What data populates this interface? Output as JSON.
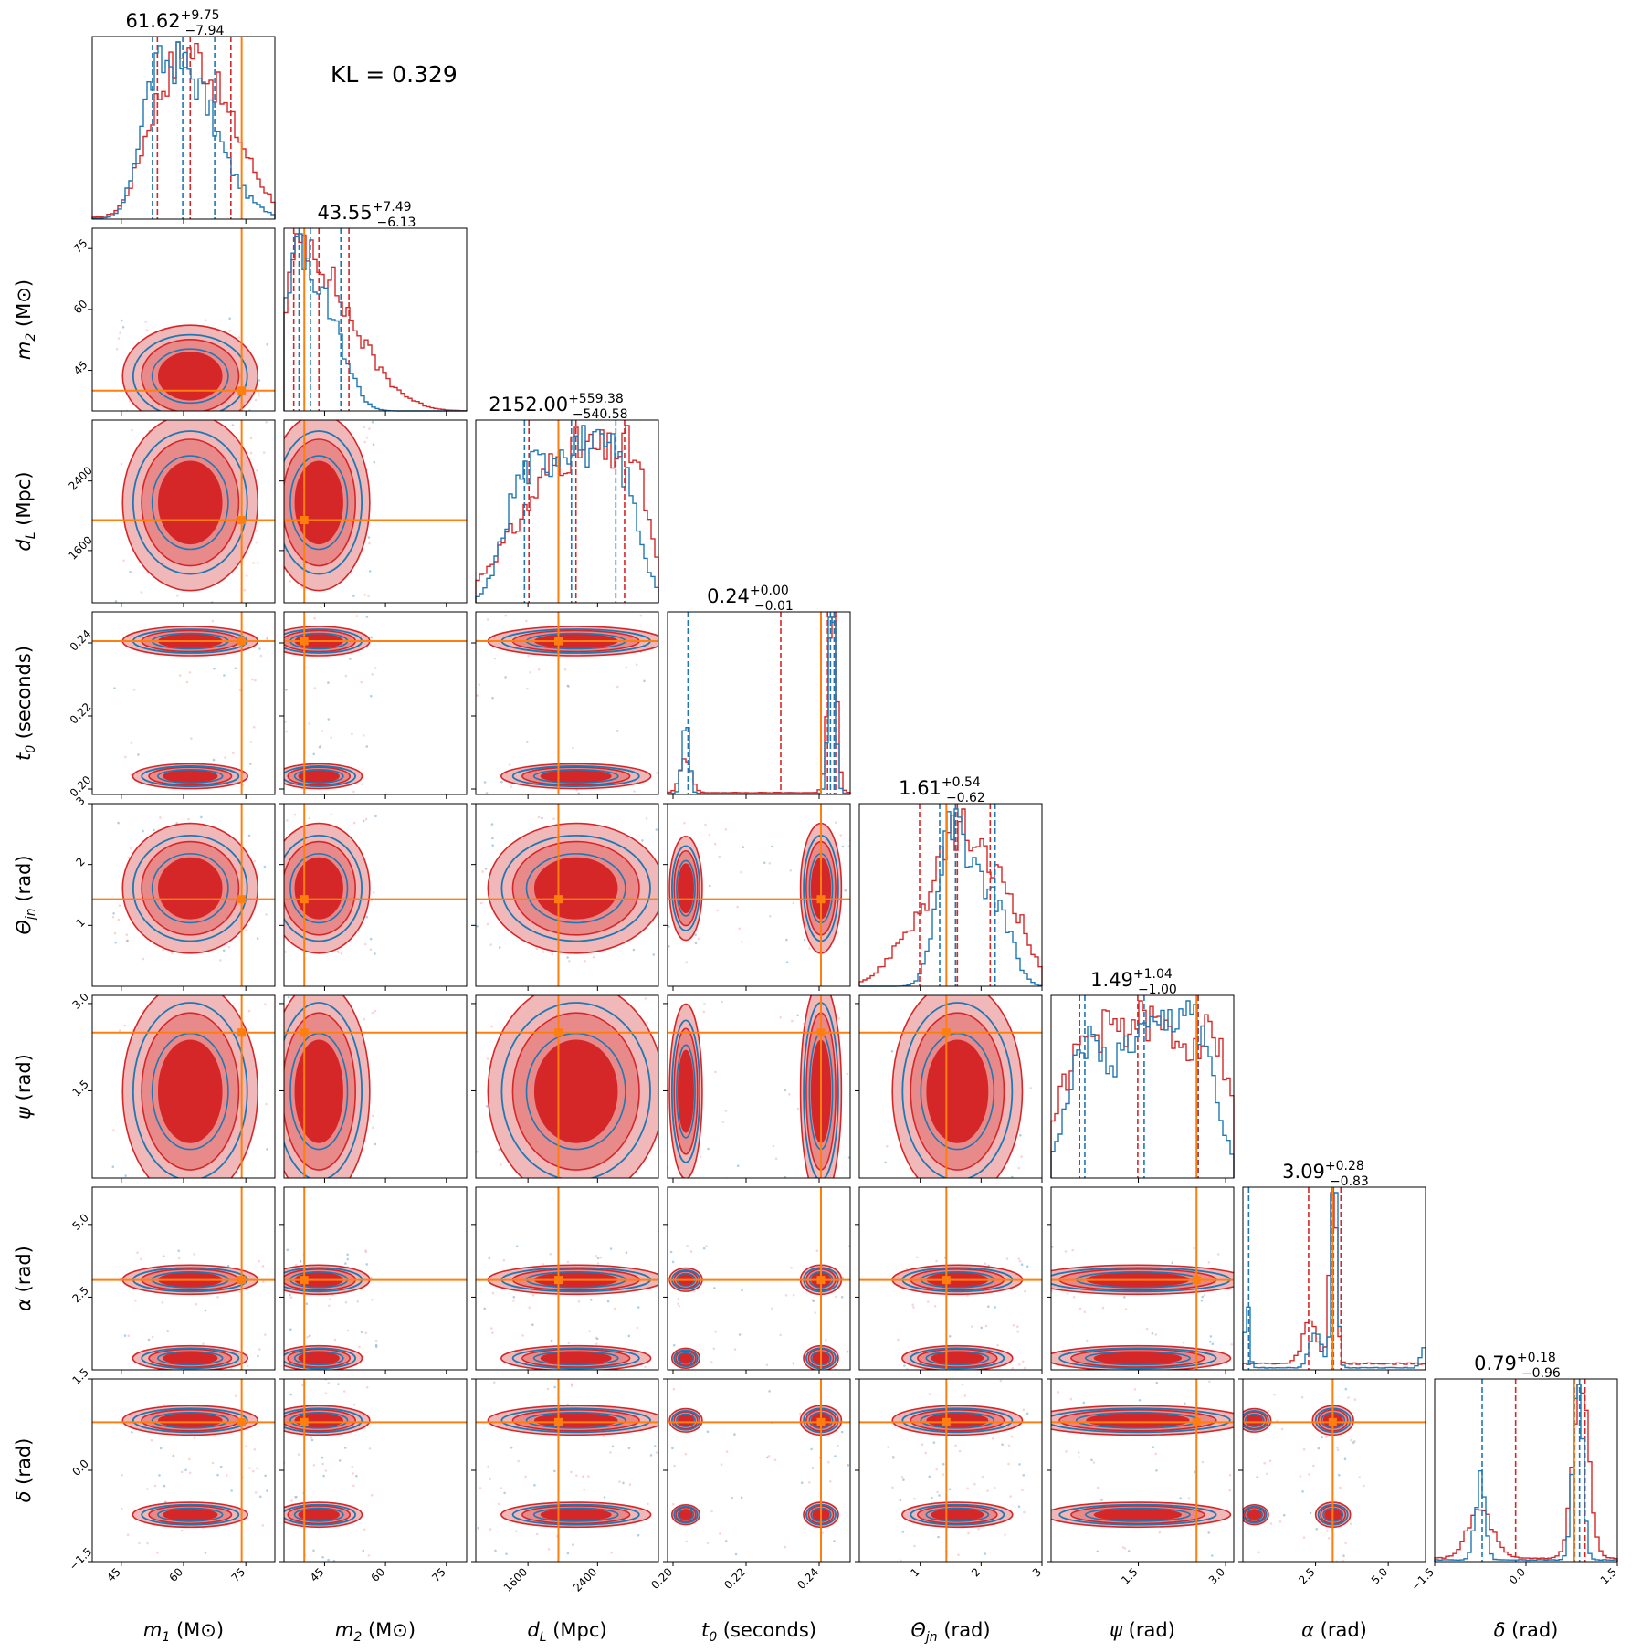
{
  "annotation": "KL = 0.329",
  "colors": {
    "red": "#d62728",
    "red_light": "#e8898a",
    "red_fill": "#f0b8b8",
    "blue": "#1f77b4",
    "orange": "#ff7f0e",
    "green": "#2ca02c"
  },
  "chart_data": {
    "type": "corner",
    "parameters": [
      {
        "id": "m1",
        "label_main": "m",
        "label_sub": "1",
        "label_unit": "(M⊙)",
        "range": [
          38,
          82
        ],
        "ticks": [
          45,
          60,
          75
        ],
        "tick_labels": [
          "45",
          "60",
          "75"
        ],
        "truth": 74,
        "title_median": "61.62",
        "title_plus": "+9.75",
        "title_minus": "−7.94",
        "red_hist": {
          "centers": [
            52,
            57,
            62,
            67,
            73
          ],
          "widths": [
            4,
            5,
            5,
            6,
            6
          ],
          "weights": [
            0.55,
            0.85,
            0.9,
            0.75,
            0.5
          ],
          "quantiles": [
            53.7,
            61.6,
            71.4
          ],
          "floor": 0.02
        },
        "blue_hist": {
          "centers": [
            51,
            55,
            60,
            64,
            70
          ],
          "widths": [
            3,
            4,
            5,
            5,
            6
          ],
          "weights": [
            0.7,
            0.95,
            0.85,
            0.7,
            0.35
          ],
          "quantiles": [
            52.5,
            59.8,
            67.5
          ],
          "floor": 0.01
        }
      },
      {
        "id": "m2",
        "label_main": "m",
        "label_sub": "2",
        "label_unit": "(M⊙)",
        "range": [
          35,
          80
        ],
        "ticks": [
          45,
          60,
          75
        ],
        "tick_labels": [
          "45",
          "60",
          "75"
        ],
        "truth": 40,
        "title_median": "43.55",
        "title_plus": "+7.49",
        "title_minus": "−6.13",
        "red_hist": {
          "centers": [
            38,
            43,
            50,
            58
          ],
          "widths": [
            4,
            5,
            6,
            7
          ],
          "weights": [
            0.9,
            0.8,
            0.55,
            0.2
          ],
          "quantiles": [
            37.4,
            43.6,
            51.0
          ],
          "floor": 0.0
        },
        "blue_hist": {
          "centers": [
            37,
            42,
            48
          ],
          "widths": [
            3,
            4,
            4
          ],
          "weights": [
            1.0,
            0.85,
            0.5
          ],
          "quantiles": [
            38.7,
            41.5,
            49.0
          ],
          "floor": 0.0
        }
      },
      {
        "id": "dL",
        "label_main": "d",
        "label_sub": "L",
        "label_unit": "(Mpc)",
        "range": [
          1000,
          3100
        ],
        "ticks": [
          1600,
          2400
        ],
        "tick_labels": [
          "1600",
          "2400"
        ],
        "truth": 1950,
        "title_median": "2152.00",
        "title_plus": "+559.38",
        "title_minus": "−540.58",
        "red_hist": {
          "centers": [
            1300,
            1800,
            2200,
            2600,
            2850
          ],
          "widths": [
            250,
            300,
            300,
            250,
            150
          ],
          "weights": [
            0.3,
            0.75,
            0.85,
            0.8,
            0.7
          ],
          "quantiles": [
            1611,
            2152,
            2711
          ],
          "floor": 0.02
        },
        "blue_hist": {
          "centers": [
            1500,
            1950,
            2350,
            2700
          ],
          "widths": [
            200,
            250,
            250,
            200
          ],
          "weights": [
            0.8,
            0.95,
            0.8,
            0.75
          ],
          "quantiles": [
            1560,
            2100,
            2610
          ],
          "floor": 0.0
        }
      },
      {
        "id": "t0",
        "label_main": "t",
        "label_sub": "0",
        "label_unit": "(seconds)",
        "range": [
          0.1985,
          0.2485
        ],
        "ticks": [
          0.2,
          0.22,
          0.24
        ],
        "tick_labels": [
          "0.20",
          "0.22",
          "0.24"
        ],
        "truth": 0.2405,
        "title_median": "0.24",
        "title_plus": "+0.00",
        "title_minus": "−0.01",
        "red_hist": {
          "centers": [
            0.2035,
            0.2435
          ],
          "widths": [
            0.0015,
            0.0012
          ],
          "weights": [
            0.18,
            1.0
          ],
          "quantiles": [
            0.2295,
            0.2423,
            0.2445
          ],
          "floor": 0.01
        },
        "blue_hist": {
          "centers": [
            0.2035,
            0.2435
          ],
          "widths": [
            0.0009,
            0.0009
          ],
          "weights": [
            0.35,
            1.0
          ],
          "quantiles": [
            0.2041,
            0.2431,
            0.2441
          ],
          "floor": 0.005
        }
      },
      {
        "id": "theta",
        "label_main": "Θ",
        "label_sub": "jn",
        "label_unit": "(rad)",
        "range": [
          0.0,
          3.0
        ],
        "ticks": [
          1,
          2,
          3
        ],
        "tick_labels": [
          "1",
          "2",
          "3"
        ],
        "truth": 1.43,
        "title_median": "1.61",
        "title_plus": "+0.54",
        "title_minus": "−0.62",
        "red_hist": {
          "centers": [
            0.9,
            1.6,
            2.2,
            2.6
          ],
          "widths": [
            0.35,
            0.3,
            0.3,
            0.25
          ],
          "weights": [
            0.35,
            0.9,
            0.55,
            0.25
          ],
          "quantiles": [
            0.99,
            1.61,
            2.15
          ],
          "floor": 0.02
        },
        "blue_hist": {
          "centers": [
            1.4,
            1.65,
            2.1,
            2.4
          ],
          "widths": [
            0.2,
            0.25,
            0.25,
            0.2
          ],
          "weights": [
            0.6,
            0.95,
            0.55,
            0.3
          ],
          "quantiles": [
            1.32,
            1.58,
            2.23
          ],
          "floor": 0.0
        }
      },
      {
        "id": "psi",
        "label_main": "ψ",
        "label_sub": "",
        "label_unit": "(rad)",
        "range": [
          0.0,
          3.14
        ],
        "ticks": [
          1.5,
          3.0
        ],
        "tick_labels": [
          "1.5",
          "3.0"
        ],
        "truth": 2.5,
        "title_median": "1.49",
        "title_plus": "+1.04",
        "title_minus": "−1.00",
        "red_hist": {
          "centers": [
            0.5,
            1.2,
            1.8,
            2.5,
            2.9
          ],
          "widths": [
            0.4,
            0.4,
            0.4,
            0.4,
            0.25
          ],
          "weights": [
            0.55,
            0.5,
            0.5,
            0.5,
            0.35
          ],
          "quantiles": [
            0.49,
            1.49,
            2.53
          ],
          "floor": 0.05
        },
        "blue_hist": {
          "centers": [
            0.6,
            1.3,
            1.9,
            2.5
          ],
          "widths": [
            0.3,
            0.3,
            0.35,
            0.3
          ],
          "weights": [
            0.75,
            0.55,
            0.7,
            0.8
          ],
          "quantiles": [
            0.58,
            1.6,
            2.52
          ],
          "floor": 0.05
        }
      },
      {
        "id": "alpha",
        "label_main": "α",
        "label_sub": "",
        "label_unit": "(rad)",
        "range": [
          0.0,
          6.283
        ],
        "ticks": [
          2.5,
          5.0
        ],
        "tick_labels": [
          "2.5",
          "5.0"
        ],
        "truth": 3.09,
        "title_median": "3.09",
        "title_plus": "+0.28",
        "title_minus": "−0.83",
        "red_hist": {
          "centers": [
            2.3,
            3.1
          ],
          "widths": [
            0.25,
            0.12
          ],
          "weights": [
            0.2,
            0.9
          ],
          "quantiles": [
            2.26,
            3.09,
            3.37
          ],
          "floor": 0.03
        },
        "blue_hist": {
          "centers": [
            0.15,
            2.5,
            3.15,
            6.2
          ],
          "widths": [
            0.08,
            0.2,
            0.1,
            0.1
          ],
          "weights": [
            0.3,
            0.2,
            1.0,
            0.1
          ],
          "quantiles": [
            0.2,
            3.05,
            3.12
          ],
          "floor": 0.01
        }
      },
      {
        "id": "delta",
        "label_main": "δ",
        "label_sub": "",
        "label_unit": "(rad)",
        "range": [
          -1.5,
          1.5
        ],
        "ticks": [
          -1.5,
          0.0,
          1.5
        ],
        "tick_labels": [
          "−1.5",
          "0.0",
          "1.5"
        ],
        "truth": 0.79,
        "title_median": "0.79",
        "title_plus": "+0.18",
        "title_minus": "−0.96",
        "red_hist": {
          "centers": [
            -0.75,
            0.9
          ],
          "widths": [
            0.2,
            0.13
          ],
          "weights": [
            0.28,
            1.0
          ],
          "quantiles": [
            -0.17,
            0.79,
            0.97
          ],
          "floor": 0.02
        },
        "blue_hist": {
          "centers": [
            -0.75,
            0.85
          ],
          "widths": [
            0.08,
            0.08
          ],
          "weights": [
            0.45,
            1.0
          ],
          "quantiles": [
            -0.72,
            0.8,
            0.88
          ],
          "floor": 0.01
        }
      }
    ],
    "modes": {
      "t0": [
        0.2405,
        0.2035
      ],
      "delta": [
        0.82,
        -0.73
      ],
      "alpha": [
        3.1,
        0.4
      ]
    }
  }
}
